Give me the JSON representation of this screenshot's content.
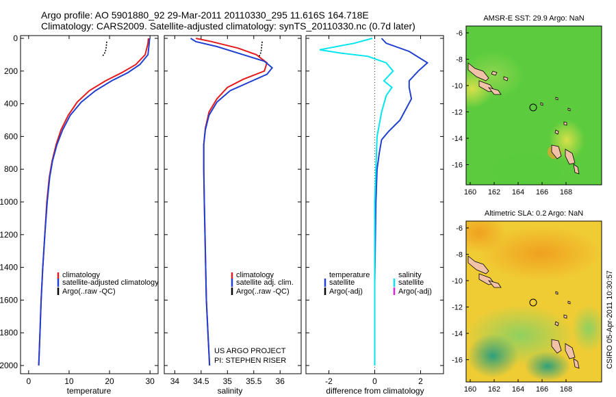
{
  "header": {
    "line1": "Argo profile: AO 5901880_92 29-Mar-2011 20110330_295 11.616S 164.718E",
    "line2": "Climatology: CARS2009. Satellite-adjusted climatology: synTS_20110330.nc (0.7d later)"
  },
  "side_label": "CSIRO 05-Apr-2011 10:30:57",
  "credit": {
    "line1": "US ARGO PROJECT",
    "line2": "PI: STEPHEN RISER"
  },
  "colors": {
    "climatology": "#e41a1c",
    "satellite": "#1f3fd0",
    "argo": "#000000",
    "cyan": "#00e5ee",
    "magenta": "#dd22dd"
  },
  "chart_data": [
    {
      "type": "line",
      "xlabel": "temperature",
      "ylabel": "",
      "xlim": [
        -2,
        32
      ],
      "ylim": [
        2050,
        0
      ],
      "x_ticks": [
        0,
        10,
        20,
        30
      ],
      "y_ticks": [
        0,
        200,
        400,
        600,
        800,
        1000,
        1200,
        1400,
        1600,
        1800,
        2000
      ],
      "legend": [
        "climatology",
        "satellite-adjusted climatology",
        "Argo(..raw -QC)"
      ],
      "series": [
        {
          "name": "climatology",
          "color": "#e41a1c",
          "points": [
            [
              29.6,
              0
            ],
            [
              29.5,
              30
            ],
            [
              28.8,
              100
            ],
            [
              26.5,
              160
            ],
            [
              23.0,
              210
            ],
            [
              19.0,
              260
            ],
            [
              15.0,
              320
            ],
            [
              12.0,
              390
            ],
            [
              9.8,
              470
            ],
            [
              8.0,
              560
            ],
            [
              6.8,
              650
            ],
            [
              5.8,
              750
            ],
            [
              5.1,
              850
            ],
            [
              4.5,
              1000
            ],
            [
              4.0,
              1200
            ],
            [
              3.5,
              1400
            ],
            [
              3.1,
              1600
            ],
            [
              2.8,
              1800
            ],
            [
              2.5,
              2000
            ]
          ]
        },
        {
          "name": "satellite-adjusted climatology",
          "color": "#1f3fd0",
          "points": [
            [
              29.9,
              0
            ],
            [
              29.8,
              30
            ],
            [
              29.5,
              100
            ],
            [
              27.5,
              160
            ],
            [
              24.5,
              210
            ],
            [
              20.5,
              260
            ],
            [
              16.5,
              320
            ],
            [
              13.0,
              390
            ],
            [
              10.3,
              470
            ],
            [
              8.4,
              560
            ],
            [
              7.0,
              650
            ],
            [
              5.9,
              750
            ],
            [
              5.2,
              850
            ],
            [
              4.6,
              1000
            ],
            [
              4.0,
              1200
            ],
            [
              3.5,
              1400
            ],
            [
              3.1,
              1600
            ],
            [
              2.8,
              1800
            ],
            [
              2.5,
              2000
            ]
          ]
        },
        {
          "name": "Argo(..raw -QC)",
          "color": "#000000",
          "points": [
            [
              19.3,
              20
            ],
            [
              19.2,
              50
            ],
            [
              19.0,
              80
            ],
            [
              18.6,
              100
            ],
            [
              18.0,
              110
            ]
          ]
        }
      ]
    },
    {
      "type": "line",
      "xlabel": "salinity",
      "ylabel": "",
      "xlim": [
        33.8,
        36.4
      ],
      "ylim": [
        2050,
        0
      ],
      "x_ticks": [
        34,
        34.5,
        35,
        35.5,
        36
      ],
      "y_ticks": [
        0,
        200,
        400,
        600,
        800,
        1000,
        1200,
        1400,
        1600,
        1800,
        2000
      ],
      "legend": [
        "climatology",
        "satellite adj. clim.",
        "Argo(..raw -QC)"
      ],
      "series": [
        {
          "name": "climatology",
          "color": "#e41a1c",
          "points": [
            [
              34.4,
              0
            ],
            [
              34.7,
              20
            ],
            [
              35.2,
              60
            ],
            [
              35.55,
              100
            ],
            [
              35.75,
              150
            ],
            [
              35.7,
              200
            ],
            [
              35.3,
              250
            ],
            [
              35.0,
              300
            ],
            [
              34.8,
              370
            ],
            [
              34.65,
              450
            ],
            [
              34.58,
              550
            ],
            [
              34.55,
              650
            ],
            [
              34.55,
              800
            ],
            [
              34.56,
              1000
            ],
            [
              34.58,
              1300
            ],
            [
              34.6,
              1600
            ],
            [
              34.63,
              1800
            ],
            [
              34.66,
              2000
            ]
          ]
        },
        {
          "name": "satellite adj. clim.",
          "color": "#1f3fd0",
          "points": [
            [
              34.3,
              0
            ],
            [
              34.4,
              20
            ],
            [
              34.8,
              50
            ],
            [
              35.3,
              100
            ],
            [
              35.7,
              140
            ],
            [
              35.85,
              180
            ],
            [
              35.75,
              220
            ],
            [
              35.4,
              270
            ],
            [
              35.05,
              320
            ],
            [
              34.8,
              390
            ],
            [
              34.65,
              470
            ],
            [
              34.58,
              560
            ],
            [
              34.55,
              650
            ],
            [
              34.55,
              800
            ],
            [
              34.56,
              1000
            ],
            [
              34.58,
              1300
            ],
            [
              34.6,
              1600
            ],
            [
              34.63,
              1800
            ],
            [
              34.66,
              2000
            ]
          ]
        },
        {
          "name": "Argo(..raw -QC)",
          "color": "#000000",
          "points": [
            [
              35.66,
              20
            ],
            [
              35.65,
              50
            ],
            [
              35.64,
              80
            ],
            [
              35.62,
              100
            ],
            [
              35.6,
              110
            ]
          ]
        }
      ]
    },
    {
      "type": "line",
      "xlabel": "difference from climatology",
      "ylabel": "",
      "xlim": [
        -3,
        3
      ],
      "ylim": [
        2050,
        0
      ],
      "x_ticks": [
        -2,
        0,
        2
      ],
      "y_ticks": [
        0,
        200,
        400,
        600,
        800,
        1000,
        1200,
        1400,
        1600,
        1800,
        2000
      ],
      "legend": [
        "temperature",
        "satellite",
        "Argo(-adj)",
        "salinity",
        "satellite",
        "Argo(-adj)"
      ],
      "series": [
        {
          "name": "satellite",
          "color": "#1f3fd0",
          "points": [
            [
              0.3,
              0
            ],
            [
              0.5,
              30
            ],
            [
              1.5,
              80
            ],
            [
              2.3,
              150
            ],
            [
              1.9,
              200
            ],
            [
              1.5,
              260
            ],
            [
              1.5,
              300
            ],
            [
              1.6,
              370
            ],
            [
              1.1,
              500
            ],
            [
              0.6,
              570
            ],
            [
              0.3,
              620
            ],
            [
              0.2,
              700
            ],
            [
              0.1,
              800
            ],
            [
              0.05,
              1000
            ],
            [
              0.0,
              1500
            ],
            [
              0.0,
              2000
            ]
          ]
        },
        {
          "name": "satellite",
          "color": "#00e5ee",
          "points": [
            [
              -0.1,
              0
            ],
            [
              -0.9,
              30
            ],
            [
              -2.4,
              70
            ],
            [
              -1.5,
              90
            ],
            [
              -0.3,
              110
            ],
            [
              0.5,
              150
            ],
            [
              0.8,
              200
            ],
            [
              0.4,
              260
            ],
            [
              0.75,
              300
            ],
            [
              0.5,
              350
            ],
            [
              0.3,
              450
            ],
            [
              0.1,
              600
            ],
            [
              0.05,
              800
            ],
            [
              0.0,
              1000
            ],
            [
              0.0,
              1500
            ],
            [
              0.0,
              2000
            ]
          ]
        }
      ]
    }
  ],
  "maps": [
    {
      "title": "AMSR-E SST: 29.9 Argo: NaN",
      "x_ticks": [
        "160",
        "162",
        "164",
        "166",
        "168"
      ],
      "y_ticks": [
        "-6",
        "-8",
        "-10",
        "-12",
        "-14",
        "-16"
      ]
    },
    {
      "title": "Altimetric SLA: 0.2 Argo: NaN",
      "x_ticks": [
        "160",
        "162",
        "164",
        "166",
        "168"
      ],
      "y_ticks": [
        "-6",
        "-8",
        "-10",
        "-12",
        "-14",
        "-16"
      ]
    }
  ]
}
